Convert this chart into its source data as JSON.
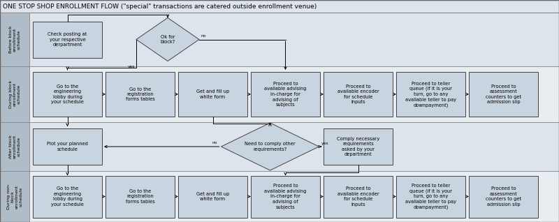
{
  "title": "ONE STOP SHOP ENROLLMENT FLOW (\"special\" transactions are catered outside enrollment venue)",
  "title_fontsize": 6.5,
  "box_fill": "#c8d4e0",
  "box_edge": "#444444",
  "diamond_fill": "#c8d4e0",
  "row_label_fill": "#b0bcc8",
  "row_bg_even": "#dde4ec",
  "row_bg_odd": "#e8edf2",
  "title_bg": "#dde4ec",
  "text_fontsize": 4.8,
  "label_fontsize": 4.5,
  "row_labels": [
    "Before block\nenrollment\nschedule",
    "During block\nenrollment\nschedule",
    "After block\nenrollment\nschedule",
    "During non-\nblock\nenrollment\nschedule"
  ],
  "lw": 0.7,
  "arrow_lw": 0.7
}
